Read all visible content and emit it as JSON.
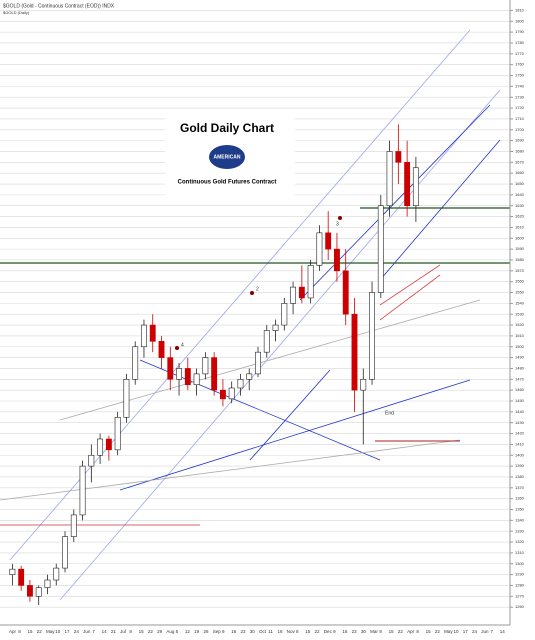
{
  "header": {
    "symbol": "$GOLD (Gold - Continuous Contract (EOD)) INDX",
    "period": "$GOLD (Daily)"
  },
  "chart_data": {
    "type": "candlestick",
    "title": "Gold Daily Chart",
    "logo": "AMERICAN",
    "subtitle": "Continuous Gold Futures Contract",
    "up_color": "#222222",
    "down_color": "#cc0000",
    "grid": true,
    "slots": 57,
    "x_labels": [
      "Apr",
      "8",
      "15",
      "22",
      "May",
      "10",
      "17",
      "24",
      "Jun",
      "7",
      "14",
      "21",
      "Jul",
      "8",
      "15",
      "22",
      "29",
      "Aug",
      "5",
      "12",
      "19",
      "26",
      "Sep",
      "9",
      "16",
      "23",
      "30",
      "Oct",
      "11",
      "18",
      "Nov",
      "8",
      "15",
      "22",
      "Dec",
      "9",
      "16",
      "23",
      "30",
      "Mar",
      "8",
      "15",
      "22",
      "Apr",
      "8",
      "15",
      "22",
      "May",
      "10",
      "17",
      "24",
      "Jun",
      "7",
      "14"
    ],
    "open": [
      1290,
      1295,
      1280,
      1270,
      1278,
      1285,
      1296,
      1325,
      1345,
      1390,
      1400,
      1415,
      1405,
      1435,
      1470,
      1500,
      1520,
      1505,
      1490,
      1470,
      1480,
      1465,
      1475,
      1490,
      1460,
      1452,
      1462,
      1470,
      1475,
      1495,
      1515,
      1520,
      1540,
      1555,
      1545,
      1575,
      1605,
      1590,
      1570,
      1530,
      1460,
      1470,
      1550,
      1630,
      1680,
      1670,
      1630
    ],
    "high": [
      1300,
      1298,
      1285,
      1280,
      1290,
      1300,
      1330,
      1350,
      1395,
      1410,
      1420,
      1418,
      1440,
      1475,
      1505,
      1525,
      1530,
      1510,
      1500,
      1485,
      1490,
      1480,
      1495,
      1495,
      1470,
      1468,
      1475,
      1480,
      1500,
      1520,
      1525,
      1545,
      1560,
      1575,
      1580,
      1612,
      1625,
      1605,
      1590,
      1545,
      1480,
      1560,
      1640,
      1690,
      1705,
      1690,
      1675
    ],
    "low": [
      1280,
      1275,
      1265,
      1262,
      1272,
      1280,
      1292,
      1320,
      1340,
      1375,
      1392,
      1395,
      1400,
      1430,
      1465,
      1490,
      1495,
      1480,
      1460,
      1455,
      1460,
      1455,
      1470,
      1455,
      1445,
      1448,
      1455,
      1460,
      1472,
      1490,
      1505,
      1515,
      1530,
      1540,
      1540,
      1570,
      1580,
      1560,
      1520,
      1440,
      1410,
      1465,
      1545,
      1620,
      1650,
      1620,
      1615
    ],
    "close": [
      1295,
      1280,
      1270,
      1278,
      1285,
      1296,
      1325,
      1345,
      1390,
      1400,
      1415,
      1405,
      1435,
      1470,
      1500,
      1520,
      1505,
      1490,
      1470,
      1480,
      1465,
      1475,
      1490,
      1460,
      1452,
      1462,
      1470,
      1475,
      1495,
      1515,
      1520,
      1540,
      1555,
      1545,
      1575,
      1605,
      1590,
      1570,
      1530,
      1460,
      1470,
      1550,
      1630,
      1680,
      1670,
      1630,
      1665
    ],
    "ylim": [
      1250,
      1815
    ],
    "yticks": [
      1260,
      1270,
      1280,
      1290,
      1300,
      1310,
      1320,
      1330,
      1340,
      1350,
      1360,
      1370,
      1380,
      1390,
      1400,
      1410,
      1420,
      1430,
      1440,
      1450,
      1460,
      1470,
      1480,
      1490,
      1500,
      1510,
      1520,
      1530,
      1540,
      1550,
      1560,
      1570,
      1580,
      1590,
      1600,
      1610,
      1620,
      1630,
      1640,
      1650,
      1660,
      1670,
      1680,
      1690,
      1700,
      1710,
      1720,
      1730,
      1740,
      1750,
      1760,
      1770,
      1780,
      1790,
      1800,
      1810
    ],
    "annotations": [
      "2",
      "3",
      "4",
      "End"
    ]
  }
}
